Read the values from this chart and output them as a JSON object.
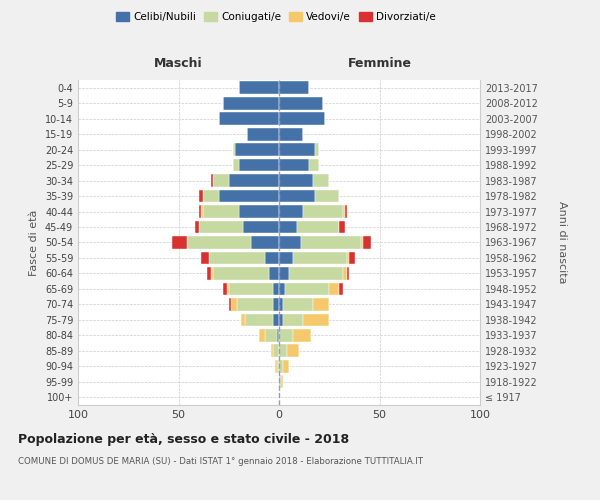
{
  "age_groups": [
    "100+",
    "95-99",
    "90-94",
    "85-89",
    "80-84",
    "75-79",
    "70-74",
    "65-69",
    "60-64",
    "55-59",
    "50-54",
    "45-49",
    "40-44",
    "35-39",
    "30-34",
    "25-29",
    "20-24",
    "15-19",
    "10-14",
    "5-9",
    "0-4"
  ],
  "birth_years": [
    "≤ 1917",
    "1918-1922",
    "1923-1927",
    "1928-1932",
    "1933-1937",
    "1938-1942",
    "1943-1947",
    "1948-1952",
    "1953-1957",
    "1958-1962",
    "1963-1967",
    "1968-1972",
    "1973-1977",
    "1978-1982",
    "1983-1987",
    "1988-1992",
    "1993-1997",
    "1998-2002",
    "2003-2007",
    "2008-2012",
    "2013-2017"
  ],
  "males_celibi": [
    0,
    0,
    0,
    0,
    1,
    3,
    3,
    3,
    5,
    7,
    14,
    18,
    20,
    30,
    25,
    20,
    22,
    16,
    30,
    28,
    20
  ],
  "males_coniugati": [
    0,
    0,
    1,
    3,
    6,
    14,
    18,
    22,
    28,
    28,
    32,
    22,
    18,
    8,
    8,
    3,
    1,
    0,
    0,
    0,
    0
  ],
  "males_vedovi": [
    0,
    0,
    1,
    1,
    3,
    2,
    3,
    1,
    1,
    0,
    0,
    0,
    1,
    0,
    0,
    0,
    0,
    0,
    0,
    0,
    0
  ],
  "males_divorziati": [
    0,
    0,
    0,
    0,
    0,
    0,
    1,
    2,
    2,
    4,
    7,
    2,
    1,
    2,
    1,
    0,
    0,
    0,
    0,
    0,
    0
  ],
  "females_nubili": [
    0,
    0,
    0,
    0,
    0,
    2,
    2,
    3,
    5,
    7,
    11,
    9,
    12,
    18,
    17,
    15,
    18,
    12,
    23,
    22,
    15
  ],
  "females_coniugate": [
    0,
    1,
    2,
    4,
    7,
    10,
    15,
    22,
    27,
    27,
    30,
    21,
    20,
    12,
    8,
    5,
    2,
    0,
    0,
    0,
    0
  ],
  "females_vedove": [
    0,
    1,
    3,
    6,
    9,
    13,
    8,
    5,
    2,
    1,
    1,
    0,
    1,
    0,
    0,
    0,
    0,
    0,
    0,
    0,
    0
  ],
  "females_divorziate": [
    0,
    0,
    0,
    0,
    0,
    0,
    0,
    2,
    1,
    3,
    4,
    3,
    1,
    0,
    0,
    0,
    0,
    0,
    0,
    0,
    0
  ],
  "color_celibi": "#4472a8",
  "color_coniugati": "#c5d9a0",
  "color_vedovi": "#f5c96b",
  "color_divorziati": "#d93030",
  "bg_color": "#f0f0f0",
  "plot_bg": "#ffffff",
  "xlim": [
    -100,
    100
  ],
  "xticks": [
    -100,
    -50,
    0,
    50,
    100
  ],
  "xticklabels": [
    "100",
    "50",
    "0",
    "50",
    "100"
  ],
  "title": "Popolazione per età, sesso e stato civile - 2018",
  "subtitle": "COMUNE DI DOMUS DE MARIA (SU) - Dati ISTAT 1° gennaio 2018 - Elaborazione TUTTITALIA.IT",
  "ylabel_left": "Fasce di età",
  "ylabel_right": "Anni di nascita",
  "label_maschi": "Maschi",
  "label_femmine": "Femmine",
  "legend_labels": [
    "Celibi/Nubili",
    "Coniugati/e",
    "Vedovi/e",
    "Divorziati/e"
  ]
}
